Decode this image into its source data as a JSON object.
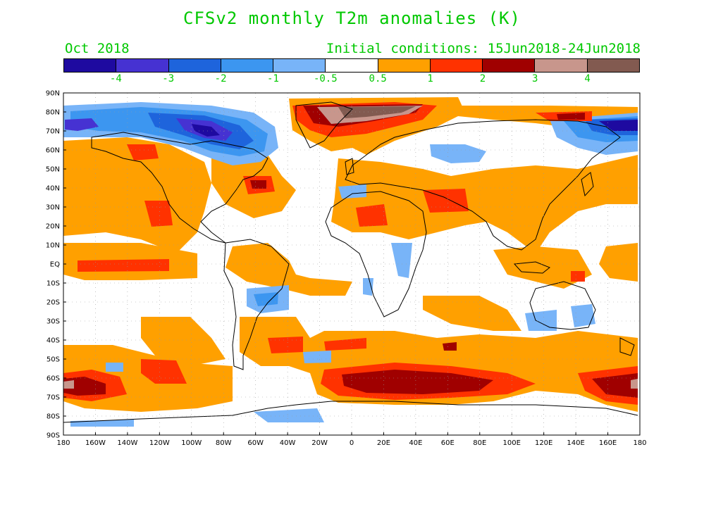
{
  "title": "CFSv2 monthly T2m anomalies (K)",
  "month": "Oct 2018",
  "initial_conditions": "Initial conditions: 15Jun2018-24Jun2018",
  "colorbar": {
    "swatches": [
      "#1e0aa0",
      "#4632d2",
      "#1e64dc",
      "#3c96f0",
      "#78b4f8",
      "#ffffff",
      "#ffa000",
      "#ff3200",
      "#a00000",
      "#c8968c",
      "#825a50"
    ],
    "tick_labels": [
      "-4",
      "-3",
      "-2",
      "-1",
      "-0.5",
      "0.5",
      "1",
      "2",
      "3",
      "4"
    ]
  },
  "axes": {
    "y_labels": [
      "90N",
      "80N",
      "70N",
      "60N",
      "50N",
      "40N",
      "30N",
      "20N",
      "10N",
      "EQ",
      "10S",
      "20S",
      "30S",
      "40S",
      "50S",
      "60S",
      "70S",
      "80S",
      "90S"
    ],
    "x_labels": [
      "180",
      "160W",
      "140W",
      "120W",
      "100W",
      "80W",
      "60W",
      "40W",
      "20W",
      "0",
      "20E",
      "40E",
      "60E",
      "80E",
      "100E",
      "120E",
      "140E",
      "160E",
      "180"
    ]
  },
  "colors": {
    "warm1": "#ffa000",
    "warm2": "#ff3200",
    "warm3": "#a00000",
    "warm4": "#c8968c",
    "warm5": "#825a50",
    "cool1": "#78b4f8",
    "cool2": "#3c96f0",
    "cool3": "#1e64dc",
    "cool4": "#4632d2",
    "cool5": "#1e0aa0",
    "title_green": "#00c800"
  }
}
